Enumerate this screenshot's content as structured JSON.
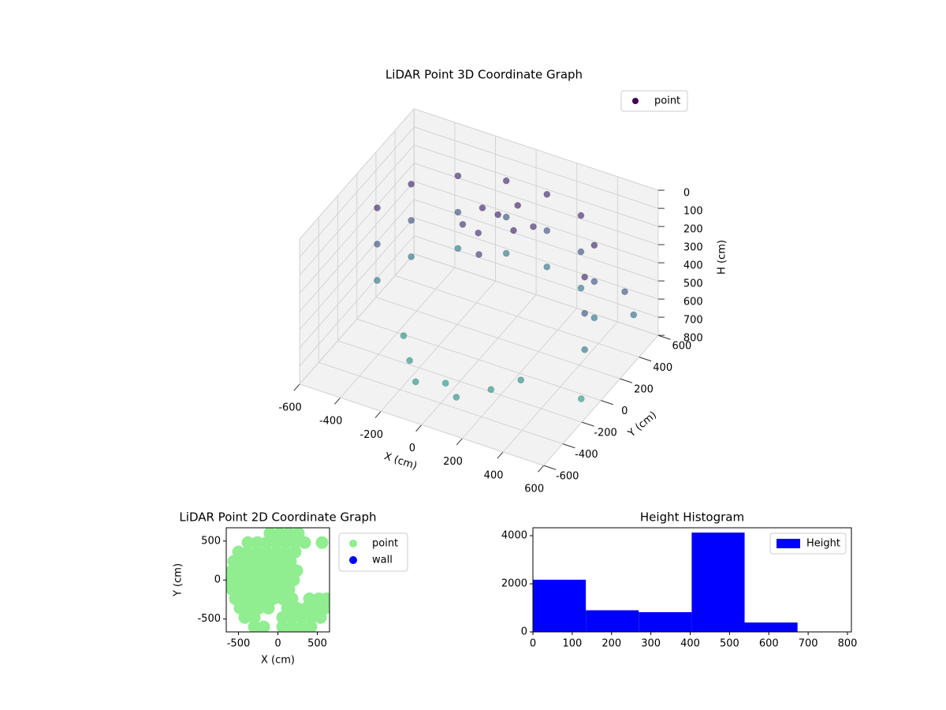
{
  "chart_data": [
    {
      "type": "scatter3d",
      "title": "LiDAR Point 3D Coordinate Graph",
      "xlabel": "X (cm)",
      "ylabel": "Y (cm)",
      "zlabel": "H (cm)",
      "xlim": [
        -600,
        600
      ],
      "ylim": [
        -600,
        600
      ],
      "zlim": [
        0,
        800
      ],
      "z_inverted": true,
      "xticks": [
        -600,
        -400,
        -200,
        0,
        200,
        400,
        600
      ],
      "yticks": [
        -600,
        -400,
        -200,
        0,
        200,
        400,
        600
      ],
      "zticks": [
        0,
        100,
        200,
        300,
        400,
        500,
        600,
        700,
        800
      ],
      "colormap": "viridis",
      "legend": "upper right",
      "grid": true,
      "series": [
        {
          "name": "point",
          "color": "#440154",
          "x": [
            -500,
            -450,
            -300,
            -100,
            100,
            300,
            450,
            520,
            -500,
            -450,
            -300,
            -100,
            100,
            300,
            450,
            520,
            -500,
            -450,
            -300,
            -100,
            100,
            300,
            450,
            520,
            0,
            -100,
            100,
            50,
            -50,
            150,
            -150,
            0,
            -200,
            0,
            200,
            -100,
            100,
            300,
            -300,
            550,
            600,
            620
          ],
          "y": [
            0,
            250,
            420,
            500,
            500,
            430,
            250,
            0,
            0,
            250,
            420,
            500,
            500,
            430,
            250,
            0,
            0,
            250,
            420,
            500,
            500,
            430,
            250,
            0,
            200,
            250,
            150,
            300,
            100,
            250,
            150,
            0,
            -300,
            -350,
            -300,
            -450,
            -450,
            -200,
            -150,
            -100,
            250,
            300
          ],
          "z": [
            150,
            150,
            150,
            150,
            150,
            150,
            150,
            150,
            350,
            350,
            350,
            350,
            350,
            350,
            350,
            350,
            550,
            550,
            550,
            550,
            550,
            550,
            550,
            550,
            120,
            150,
            140,
            110,
            180,
            160,
            200,
            220,
            700,
            720,
            710,
            690,
            700,
            680,
            690,
            750,
            350,
            500
          ]
        }
      ]
    },
    {
      "type": "scatter",
      "title": "LiDAR Point 2D Coordinate Graph",
      "xlabel": "X (cm)",
      "ylabel": "Y (cm)",
      "xlim": [
        -655,
        655
      ],
      "ylim": [
        -665,
        670
      ],
      "xticks": [
        -500,
        0,
        500
      ],
      "yticks": [
        -500,
        0,
        500
      ],
      "legend": "outside right",
      "series": [
        {
          "name": "point",
          "color": "#90ee90",
          "x": [
            -100,
            20,
            140,
            260,
            -380,
            -260,
            -140,
            -20,
            100,
            220,
            340,
            560,
            -500,
            -380,
            -260,
            -140,
            -20,
            100,
            220,
            -560,
            -440,
            -320,
            -200,
            -80,
            40,
            160,
            -580,
            -460,
            -340,
            -220,
            -100,
            20,
            140,
            240,
            -600,
            -480,
            -360,
            -240,
            -120,
            0,
            120,
            200,
            -580,
            -460,
            -340,
            -220,
            -100,
            20,
            140,
            -540,
            -420,
            -300,
            -180,
            -60,
            60,
            180,
            400,
            520,
            620,
            -480,
            -360,
            -240,
            -120,
            120,
            240,
            360,
            480,
            600,
            -420,
            -300,
            60,
            180,
            300,
            420,
            540,
            -300,
            -180,
            60,
            180,
            300,
            420
          ],
          "y": [
            600,
            600,
            600,
            600,
            480,
            480,
            480,
            480,
            480,
            480,
            480,
            480,
            360,
            360,
            360,
            360,
            360,
            360,
            360,
            240,
            240,
            240,
            240,
            240,
            240,
            240,
            120,
            120,
            120,
            120,
            120,
            120,
            120,
            120,
            0,
            0,
            0,
            0,
            0,
            0,
            0,
            0,
            -120,
            -120,
            -120,
            -120,
            -120,
            -120,
            -120,
            -240,
            -240,
            -240,
            -240,
            -240,
            -240,
            -240,
            -240,
            -240,
            -240,
            -360,
            -360,
            -360,
            -360,
            -360,
            -360,
            -360,
            -360,
            -360,
            -480,
            -480,
            -480,
            -480,
            -480,
            -480,
            -480,
            -600,
            -600,
            -600,
            -600,
            -600,
            -600
          ]
        },
        {
          "name": "wall",
          "color": "#0000ff",
          "x": [],
          "y": []
        }
      ]
    },
    {
      "type": "histogram",
      "title": "Height Histogram",
      "bins": [
        0,
        134.6,
        269.2,
        403.8,
        538.4,
        673
      ],
      "xlim": [
        0,
        810
      ],
      "ylim": [
        0,
        4330
      ],
      "xticks": [
        0,
        100,
        200,
        300,
        400,
        500,
        600,
        700,
        800
      ],
      "yticks": [
        0,
        2000,
        4000
      ],
      "legend": "upper right",
      "series": [
        {
          "name": "Height",
          "color": "#0000ff",
          "values": [
            2170,
            900,
            820,
            4130,
            390
          ]
        }
      ]
    }
  ]
}
